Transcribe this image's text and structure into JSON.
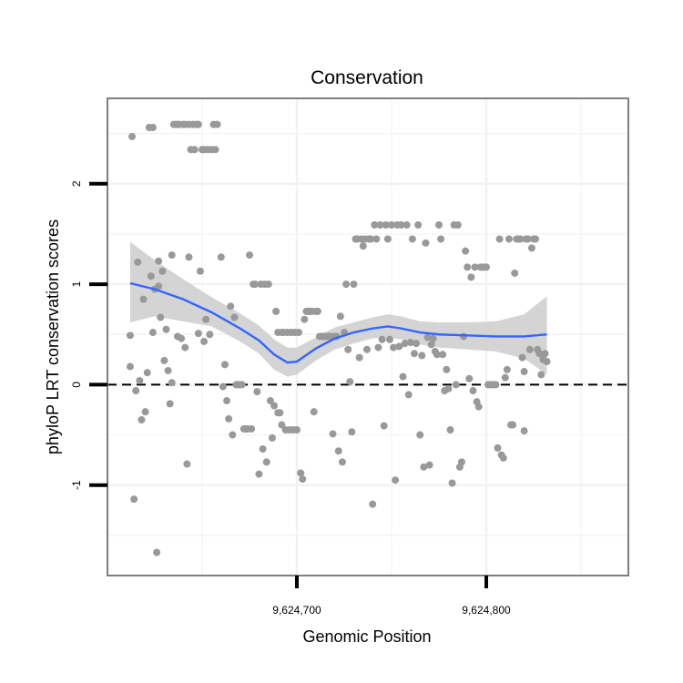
{
  "chart_data": {
    "type": "scatter",
    "title": "Conservation",
    "xlabel": "Genomic Position",
    "ylabel": "phyloP LRT conservation scores",
    "xlim": [
      9624600,
      9624875
    ],
    "ylim": [
      -1.9,
      2.85
    ],
    "x_ticks": [
      9624700,
      9624800
    ],
    "x_tick_labels": [
      "9,624,700",
      "9,624,800"
    ],
    "y_ticks": [
      -1,
      0,
      1,
      2
    ],
    "y_tick_labels": [
      "-1",
      "0",
      "1",
      "2"
    ],
    "grid": true,
    "reference_line": {
      "y": 0,
      "style": "dashed"
    },
    "colors": {
      "points": "#999999",
      "smooth_line": "#3366ff",
      "confidence_band": "#cccccc",
      "panel_border": "#7f7f7f",
      "grid": "#f2f2f2"
    },
    "points": [
      [
        9624613,
        2.47
      ],
      [
        9624612,
        0.18
      ],
      [
        9624612,
        0.49
      ],
      [
        9624614,
        -1.14
      ],
      [
        9624615,
        -0.06
      ],
      [
        9624616,
        1.22
      ],
      [
        9624617,
        0.04
      ],
      [
        9624618,
        -0.35
      ],
      [
        9624619,
        0.85
      ],
      [
        9624620,
        -0.27
      ],
      [
        9624621,
        0.12
      ],
      [
        9624622,
        2.56
      ],
      [
        9624623,
        1.08
      ],
      [
        9624624,
        2.56
      ],
      [
        9624624,
        0.52
      ],
      [
        9624625,
        0.95
      ],
      [
        9624626,
        -1.67
      ],
      [
        9624627,
        1.23
      ],
      [
        9624627,
        0.98
      ],
      [
        9624628,
        0.67
      ],
      [
        9624629,
        1.13
      ],
      [
        9624630,
        0.24
      ],
      [
        9624631,
        0.55
      ],
      [
        9624632,
        0.14
      ],
      [
        9624633,
        -0.19
      ],
      [
        9624634,
        0.02
      ],
      [
        9624634,
        1.29
      ],
      [
        9624635,
        2.59
      ],
      [
        9624636,
        2.59
      ],
      [
        9624637,
        2.59
      ],
      [
        9624637,
        0.48
      ],
      [
        9624638,
        2.59
      ],
      [
        9624639,
        0.46
      ],
      [
        9624640,
        2.59
      ],
      [
        9624641,
        0.37
      ],
      [
        9624641,
        2.59
      ],
      [
        9624642,
        -0.79
      ],
      [
        9624643,
        2.59
      ],
      [
        9624643,
        1.27
      ],
      [
        9624644,
        2.34
      ],
      [
        9624645,
        2.59
      ],
      [
        9624646,
        2.34
      ],
      [
        9624647,
        2.59
      ],
      [
        9624648,
        0.51
      ],
      [
        9624648,
        2.59
      ],
      [
        9624649,
        1.13
      ],
      [
        9624650,
        2.34
      ],
      [
        9624651,
        0.43
      ],
      [
        9624651,
        2.34
      ],
      [
        9624652,
        0.65
      ],
      [
        9624653,
        2.34
      ],
      [
        9624654,
        0.5
      ],
      [
        9624655,
        2.34
      ],
      [
        9624656,
        2.59
      ],
      [
        9624657,
        2.34
      ],
      [
        9624658,
        2.59
      ],
      [
        9624660,
        1.27
      ],
      [
        9624661,
        -0.02
      ],
      [
        9624662,
        0.2
      ],
      [
        9624663,
        -0.16
      ],
      [
        9624664,
        -0.34
      ],
      [
        9624665,
        0.78
      ],
      [
        9624666,
        -0.5
      ],
      [
        9624667,
        0.67
      ],
      [
        9624668,
        0.0
      ],
      [
        9624669,
        0.0
      ],
      [
        9624670,
        0.0
      ],
      [
        9624671,
        0.0
      ],
      [
        9624672,
        -0.44
      ],
      [
        9624673,
        -0.44
      ],
      [
        9624674,
        -0.44
      ],
      [
        9624675,
        1.29
      ],
      [
        9624676,
        -0.44
      ],
      [
        9624677,
        1.0
      ],
      [
        9624678,
        1.0
      ],
      [
        9624679,
        -0.07
      ],
      [
        9624680,
        -0.89
      ],
      [
        9624681,
        1.0
      ],
      [
        9624682,
        -0.64
      ],
      [
        9624683,
        1.0
      ],
      [
        9624684,
        -0.77
      ],
      [
        9624685,
        1.0
      ],
      [
        9624686,
        -0.16
      ],
      [
        9624687,
        -0.53
      ],
      [
        9624688,
        -0.21
      ],
      [
        9624689,
        0.73
      ],
      [
        9624690,
        -0.28
      ],
      [
        9624690,
        0.52
      ],
      [
        9624691,
        -0.28
      ],
      [
        9624692,
        -0.4
      ],
      [
        9624692,
        0.52
      ],
      [
        9624693,
        0.52
      ],
      [
        9624694,
        -0.45
      ],
      [
        9624695,
        0.52
      ],
      [
        9624696,
        -0.45
      ],
      [
        9624697,
        0.52
      ],
      [
        9624698,
        -0.45
      ],
      [
        9624699,
        0.52
      ],
      [
        9624700,
        -0.45
      ],
      [
        9624701,
        0.52
      ],
      [
        9624702,
        -0.88
      ],
      [
        9624703,
        -0.94
      ],
      [
        9624704,
        0.65
      ],
      [
        9624705,
        0.73
      ],
      [
        9624706,
        0.73
      ],
      [
        9624707,
        0.73
      ],
      [
        9624708,
        0.73
      ],
      [
        9624709,
        -0.27
      ],
      [
        9624710,
        0.73
      ],
      [
        9624711,
        0.73
      ],
      [
        9624712,
        0.48
      ],
      [
        9624713,
        0.48
      ],
      [
        9624714,
        0.48
      ],
      [
        9624715,
        0.48
      ],
      [
        9624716,
        0.48
      ],
      [
        9624717,
        0.48
      ],
      [
        9624718,
        0.48
      ],
      [
        9624719,
        -0.49
      ],
      [
        9624720,
        0.48
      ],
      [
        9624721,
        0.48
      ],
      [
        9624722,
        -0.66
      ],
      [
        9624723,
        0.68
      ],
      [
        9624724,
        -0.77
      ],
      [
        9624725,
        0.52
      ],
      [
        9624726,
        1.0
      ],
      [
        9624727,
        0.35
      ],
      [
        9624728,
        0.03
      ],
      [
        9624729,
        -0.47
      ],
      [
        9624730,
        1.0
      ],
      [
        9624731,
        1.45
      ],
      [
        9624732,
        1.45
      ],
      [
        9624733,
        0.27
      ],
      [
        9624734,
        1.45
      ],
      [
        9624735,
        1.38
      ],
      [
        9624736,
        1.45
      ],
      [
        9624737,
        0.35
      ],
      [
        9624738,
        1.45
      ],
      [
        9624739,
        1.45
      ],
      [
        9624740,
        -1.19
      ],
      [
        9624741,
        1.59
      ],
      [
        9624742,
        1.45
      ],
      [
        9624743,
        0.37
      ],
      [
        9624744,
        1.59
      ],
      [
        9624745,
        0.45
      ],
      [
        9624746,
        -0.41
      ],
      [
        9624747,
        1.59
      ],
      [
        9624748,
        1.45
      ],
      [
        9624749,
        0.45
      ],
      [
        9624750,
        1.59
      ],
      [
        9624751,
        0.37
      ],
      [
        9624752,
        -0.95
      ],
      [
        9624753,
        1.59
      ],
      [
        9624754,
        0.38
      ],
      [
        9624755,
        1.59
      ],
      [
        9624756,
        0.08
      ],
      [
        9624757,
        0.41
      ],
      [
        9624758,
        1.59
      ],
      [
        9624759,
        -0.1
      ],
      [
        9624760,
        0.42
      ],
      [
        9624761,
        1.45
      ],
      [
        9624762,
        0.31
      ],
      [
        9624763,
        0.41
      ],
      [
        9624764,
        1.59
      ],
      [
        9624765,
        -0.5
      ],
      [
        9624766,
        0.29
      ],
      [
        9624767,
        -0.82
      ],
      [
        9624768,
        1.41
      ],
      [
        9624769,
        0.47
      ],
      [
        9624770,
        -0.8
      ],
      [
        9624771,
        0.4
      ],
      [
        9624772,
        0.46
      ],
      [
        9624773,
        0.33
      ],
      [
        9624774,
        0.3
      ],
      [
        9624775,
        1.59
      ],
      [
        9624776,
        1.45
      ],
      [
        9624777,
        0.3
      ],
      [
        9624778,
        -0.06
      ],
      [
        9624779,
        0.15
      ],
      [
        9624780,
        -0.04
      ],
      [
        9624781,
        -0.45
      ],
      [
        9624782,
        -0.98
      ],
      [
        9624783,
        1.59
      ],
      [
        9624784,
        0.0
      ],
      [
        9624785,
        1.59
      ],
      [
        9624786,
        -0.82
      ],
      [
        9624787,
        -0.77
      ],
      [
        9624788,
        0.48
      ],
      [
        9624789,
        1.33
      ],
      [
        9624790,
        1.17
      ],
      [
        9624791,
        0.06
      ],
      [
        9624792,
        1.07
      ],
      [
        9624793,
        -0.06
      ],
      [
        9624794,
        1.17
      ],
      [
        9624795,
        -0.17
      ],
      [
        9624796,
        -0.22
      ],
      [
        9624797,
        1.17
      ],
      [
        9624798,
        1.17
      ],
      [
        9624799,
        1.17
      ],
      [
        9624800,
        1.17
      ],
      [
        9624801,
        0.0
      ],
      [
        9624802,
        0.0
      ],
      [
        9624803,
        0.0
      ],
      [
        9624804,
        0.0
      ],
      [
        9624805,
        0.0
      ],
      [
        9624806,
        -0.63
      ],
      [
        9624807,
        1.45
      ],
      [
        9624808,
        -0.7
      ],
      [
        9624809,
        -0.73
      ],
      [
        9624810,
        0.07
      ],
      [
        9624811,
        0.15
      ],
      [
        9624812,
        1.45
      ],
      [
        9624813,
        -0.4
      ],
      [
        9624814,
        -0.4
      ],
      [
        9624815,
        1.11
      ],
      [
        9624816,
        1.45
      ],
      [
        9624817,
        1.45
      ],
      [
        9624818,
        1.45
      ],
      [
        9624819,
        0.27
      ],
      [
        9624820,
        0.13
      ],
      [
        9624820,
        -0.46
      ],
      [
        9624821,
        1.45
      ],
      [
        9624822,
        1.45
      ],
      [
        9624823,
        0.35
      ],
      [
        9624824,
        1.36
      ],
      [
        9624825,
        1.45
      ],
      [
        9624826,
        1.45
      ],
      [
        9624827,
        0.35
      ],
      [
        9624828,
        0.31
      ],
      [
        9624829,
        0.1
      ],
      [
        9624830,
        0.25
      ],
      [
        9624831,
        0.31
      ],
      [
        9624832,
        0.23
      ]
    ],
    "smooth": [
      [
        9624612,
        1.01
      ],
      [
        9624625,
        0.95
      ],
      [
        9624640,
        0.85
      ],
      [
        9624655,
        0.72
      ],
      [
        9624670,
        0.56
      ],
      [
        9624680,
        0.44
      ],
      [
        9624688,
        0.3
      ],
      [
        9624695,
        0.22
      ],
      [
        9624700,
        0.23
      ],
      [
        9624710,
        0.36
      ],
      [
        9624720,
        0.46
      ],
      [
        9624730,
        0.52
      ],
      [
        9624740,
        0.56
      ],
      [
        9624748,
        0.58
      ],
      [
        9624755,
        0.56
      ],
      [
        9624765,
        0.52
      ],
      [
        9624775,
        0.5
      ],
      [
        9624790,
        0.49
      ],
      [
        9624805,
        0.48
      ],
      [
        9624820,
        0.48
      ],
      [
        9624832,
        0.5
      ]
    ],
    "band": [
      [
        9624612,
        1.42,
        0.62
      ],
      [
        9624625,
        1.24,
        0.68
      ],
      [
        9624640,
        1.05,
        0.63
      ],
      [
        9624655,
        0.87,
        0.58
      ],
      [
        9624670,
        0.71,
        0.43
      ],
      [
        9624680,
        0.59,
        0.31
      ],
      [
        9624688,
        0.45,
        0.15
      ],
      [
        9624695,
        0.37,
        0.08
      ],
      [
        9624700,
        0.37,
        0.1
      ],
      [
        9624710,
        0.47,
        0.24
      ],
      [
        9624720,
        0.57,
        0.35
      ],
      [
        9624730,
        0.62,
        0.41
      ],
      [
        9624740,
        0.67,
        0.46
      ],
      [
        9624748,
        0.7,
        0.47
      ],
      [
        9624755,
        0.68,
        0.45
      ],
      [
        9624765,
        0.63,
        0.4
      ],
      [
        9624775,
        0.62,
        0.37
      ],
      [
        9624790,
        0.62,
        0.35
      ],
      [
        9624805,
        0.63,
        0.33
      ],
      [
        9624820,
        0.7,
        0.26
      ],
      [
        9624832,
        0.88,
        0.1
      ]
    ]
  }
}
